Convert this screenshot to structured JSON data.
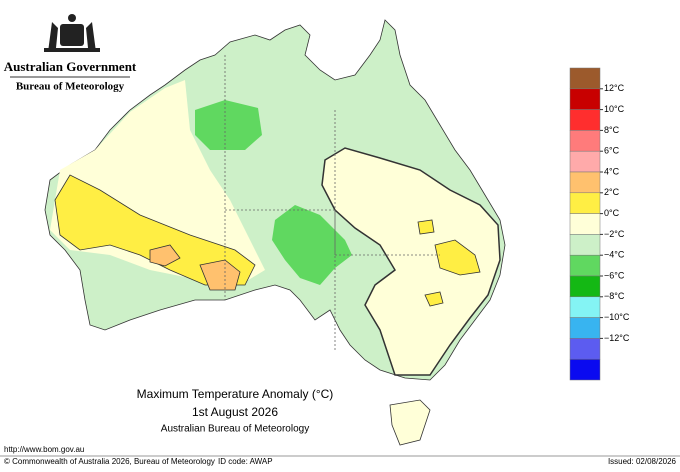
{
  "header": {
    "agency": "Australian Government",
    "bureau": "Bureau of Meteorology"
  },
  "title": {
    "line1": "Maximum Temperature Anomaly (°C)",
    "line2": "1st August 2026",
    "line3": "Australian Bureau of Meteorology"
  },
  "legend": {
    "colors": [
      "#9c5a2c",
      "#c80000",
      "#ff2e2e",
      "#ff7b7b",
      "#ffaaaa",
      "#ffc16e",
      "#ffee44",
      "#ffffd8",
      "#cdf0c8",
      "#60d860",
      "#14b814",
      "#84f4f4",
      "#38b4f0",
      "#5c5cf0",
      "#0a0af0"
    ],
    "labels": [
      "12°C",
      "10°C",
      "8°C",
      "6°C",
      "4°C",
      "2°C",
      "0°C",
      "−2°C",
      "−4°C",
      "−6°C",
      "−8°C",
      "−10°C",
      "−12°C"
    ]
  },
  "footer": {
    "url": "http://www.bom.gov.au",
    "copyright": "© Commonwealth of Australia 2026, Bureau of Meteorology",
    "id_code": "ID code: AWAP",
    "issued": "Issued: 02/08/2026"
  }
}
